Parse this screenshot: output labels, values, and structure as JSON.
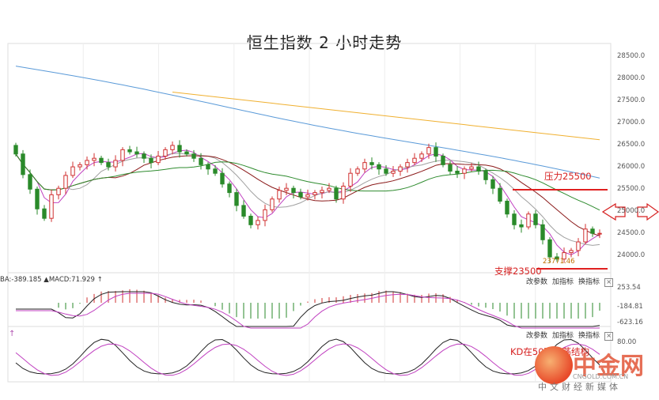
{
  "title": "恒生指数 2 小时走势",
  "chart_data": {
    "type": "candlestick",
    "price_axis": {
      "ticks": [
        "28500.0",
        "28000.0",
        "27500.0",
        "27000.0",
        "26500.0",
        "26000.0",
        "25500.0",
        "25000.0",
        "24500.0",
        "24000.0"
      ],
      "ylim": [
        23500,
        28700
      ]
    },
    "candles_close": [
      26300,
      25820,
      25480,
      25020,
      24800,
      25350,
      25500,
      25800,
      26000,
      26050,
      26150,
      26200,
      26100,
      26000,
      26150,
      26400,
      26350,
      26300,
      26200,
      26100,
      26250,
      26400,
      26500,
      26350,
      26300,
      26200,
      26050,
      25950,
      25850,
      25600,
      25400,
      25100,
      24850,
      24650,
      24750,
      25000,
      25250,
      25450,
      25500,
      25400,
      25300,
      25350,
      25400,
      25450,
      25500,
      25250,
      25550,
      25850,
      25950,
      26100,
      26050,
      25950,
      25850,
      25900,
      26000,
      26100,
      26200,
      26300,
      26450,
      26250,
      26050,
      25900,
      25850,
      25950,
      26000,
      25900,
      25700,
      25500,
      25200,
      24900,
      24650,
      24600,
      24900,
      24650,
      24300,
      23900,
      23850,
      24000,
      24050,
      24250,
      24550,
      24450,
      24450
    ],
    "low_label": "23771.46",
    "annotations": {
      "resistance_label": "压力25500",
      "resistance_level": 25500,
      "support_label": "支撑23500",
      "support_level": 23500
    },
    "macd": {
      "header": "BA:-389.185 ▲MACD:71.929 ↑",
      "axis_values": [
        "253.54",
        "-184.81",
        "-623.16"
      ]
    },
    "kd": {
      "header": "↑",
      "axis_values": [
        "80.00"
      ],
      "annotation": "KD在50下震荡结构"
    }
  },
  "toolbar": {
    "change_params": "改参数",
    "add_indicator": "加指标",
    "switch_indicator": "换指标",
    "close": "×"
  },
  "watermark": {
    "brand": "中金网",
    "url": "CNGOLD.COM.CN",
    "tagline": "中文财经新媒体"
  },
  "colors": {
    "up": "#d03030",
    "down": "#2a8a2a",
    "ma_blue": "#5a9ad8",
    "ma_orange": "#f0b030",
    "ma_green": "#2e8b2e",
    "ma_maroon": "#8b1a1a",
    "ma_gray": "#a0a0a0",
    "ma_magenta": "#c040c0",
    "red_line": "#e02020"
  }
}
